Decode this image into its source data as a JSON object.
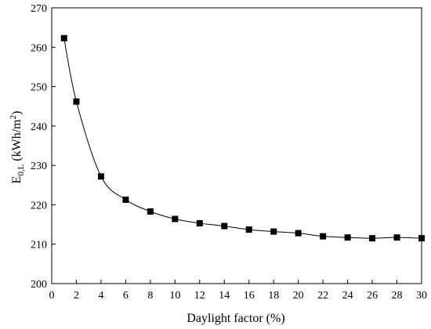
{
  "chart_data": {
    "type": "line",
    "xlabel": "Daylight factor (%)",
    "ylabel": {
      "prefix": "E",
      "subscript": "0,L",
      "unit_open": " (kWh/m",
      "superscript": "2",
      "unit_close": ")"
    },
    "xlim": [
      0,
      30
    ],
    "ylim": [
      200,
      270
    ],
    "xticks": [
      0,
      2,
      4,
      6,
      8,
      10,
      12,
      14,
      16,
      18,
      20,
      22,
      24,
      26,
      28,
      30
    ],
    "yticks": [
      200,
      210,
      220,
      230,
      240,
      250,
      260,
      270
    ],
    "grid": false,
    "legend": "none",
    "marker": "square",
    "line_color": "#000000",
    "series": [
      {
        "x": [
          1,
          2,
          4,
          6,
          8,
          10,
          12,
          14,
          16,
          18,
          20,
          22,
          24,
          26,
          28,
          30
        ],
        "y": [
          262.3,
          246.2,
          227.2,
          221.3,
          218.3,
          216.4,
          215.3,
          214.6,
          213.7,
          213.2,
          212.8,
          212.0,
          211.7,
          211.5,
          211.7,
          211.5
        ]
      }
    ]
  }
}
